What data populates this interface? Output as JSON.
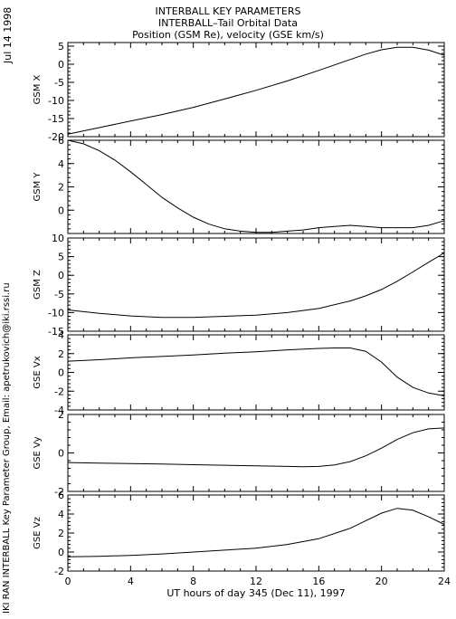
{
  "header": {
    "title": "INTERBALL KEY PARAMETERS",
    "subtitle": "INTERBALL–Tail Orbital Data",
    "subtitle2": "Position (GSM Re), velocity (GSE km/s)"
  },
  "side": {
    "date": "Jul 14 1998",
    "credit": "IKI RAN INTERBALL Key Parameter Group, Email: apetrukovich@iki.rssi.ru"
  },
  "chart_data": {
    "type": "line",
    "xlabel": "UT hours of day 345 (Dec 11), 1997",
    "xlim": [
      0,
      24
    ],
    "xticks": [
      0,
      4,
      8,
      12,
      16,
      20,
      24
    ],
    "panels": [
      {
        "ylabel": "GSM X",
        "ylim": [
          -20,
          6
        ],
        "yticks": [
          -20,
          -15,
          -10,
          -5,
          0,
          5
        ],
        "x": [
          0,
          2,
          4,
          6,
          8,
          10,
          12,
          14,
          16,
          18,
          19,
          20,
          21,
          22,
          23,
          24
        ],
        "y": [
          -19.3,
          -17.5,
          -15.7,
          -13.9,
          -11.9,
          -9.6,
          -7.2,
          -4.6,
          -1.7,
          1.3,
          2.8,
          4.0,
          4.7,
          4.7,
          3.9,
          2.5
        ]
      },
      {
        "ylabel": "GSM Y",
        "ylim": [
          -2,
          6
        ],
        "yticks": [
          0,
          2,
          4,
          6
        ],
        "x": [
          0,
          1,
          2,
          3,
          4,
          5,
          6,
          7,
          8,
          9,
          10,
          11,
          12,
          13,
          14,
          15,
          16,
          17,
          18,
          19,
          20,
          21,
          22,
          23,
          24
        ],
        "y": [
          6.0,
          5.7,
          5.1,
          4.3,
          3.3,
          2.2,
          1.1,
          0.2,
          -0.6,
          -1.2,
          -1.6,
          -1.8,
          -1.9,
          -1.9,
          -1.8,
          -1.7,
          -1.5,
          -1.4,
          -1.3,
          -1.4,
          -1.5,
          -1.5,
          -1.5,
          -1.3,
          -0.9
        ]
      },
      {
        "ylabel": "GSM Z",
        "ylim": [
          -15,
          10
        ],
        "yticks": [
          -15,
          -10,
          -5,
          0,
          5,
          10
        ],
        "x": [
          0,
          2,
          4,
          6,
          8,
          10,
          12,
          14,
          16,
          18,
          19,
          20,
          21,
          22,
          23,
          24
        ],
        "y": [
          -9.3,
          -10.2,
          -10.9,
          -11.3,
          -11.3,
          -11.0,
          -10.7,
          -10.0,
          -8.9,
          -6.9,
          -5.5,
          -3.8,
          -1.6,
          0.9,
          3.5,
          6.0
        ]
      },
      {
        "ylabel": "GSE Vx",
        "ylim": [
          -4,
          4
        ],
        "yticks": [
          -4,
          -2,
          0,
          2,
          4
        ],
        "x": [
          0,
          2,
          4,
          6,
          8,
          10,
          12,
          14,
          16,
          17,
          18,
          19,
          20,
          21,
          22,
          23,
          24
        ],
        "y": [
          1.2,
          1.35,
          1.55,
          1.7,
          1.85,
          2.05,
          2.2,
          2.4,
          2.55,
          2.6,
          2.6,
          2.25,
          1.1,
          -0.5,
          -1.6,
          -2.2,
          -2.5
        ]
      },
      {
        "ylabel": "GSE Vy",
        "ylim": [
          -2,
          2
        ],
        "yticks": [
          -2,
          0,
          2
        ],
        "x": [
          0,
          2,
          4,
          6,
          8,
          10,
          12,
          14,
          15,
          16,
          17,
          18,
          19,
          20,
          21,
          22,
          23,
          24
        ],
        "y": [
          -0.5,
          -0.53,
          -0.55,
          -0.58,
          -0.61,
          -0.64,
          -0.67,
          -0.7,
          -0.72,
          -0.7,
          -0.62,
          -0.45,
          -0.15,
          0.25,
          0.7,
          1.05,
          1.25,
          1.3
        ]
      },
      {
        "ylabel": "GSE Vz",
        "ylim": [
          -2,
          6
        ],
        "yticks": [
          -2,
          0,
          2,
          4,
          6
        ],
        "x": [
          0,
          2,
          4,
          6,
          8,
          10,
          12,
          14,
          16,
          18,
          19,
          20,
          21,
          22,
          23,
          24
        ],
        "y": [
          -0.5,
          -0.45,
          -0.35,
          -0.2,
          0.0,
          0.2,
          0.4,
          0.8,
          1.4,
          2.5,
          3.3,
          4.1,
          4.6,
          4.4,
          3.7,
          2.9
        ]
      }
    ]
  }
}
